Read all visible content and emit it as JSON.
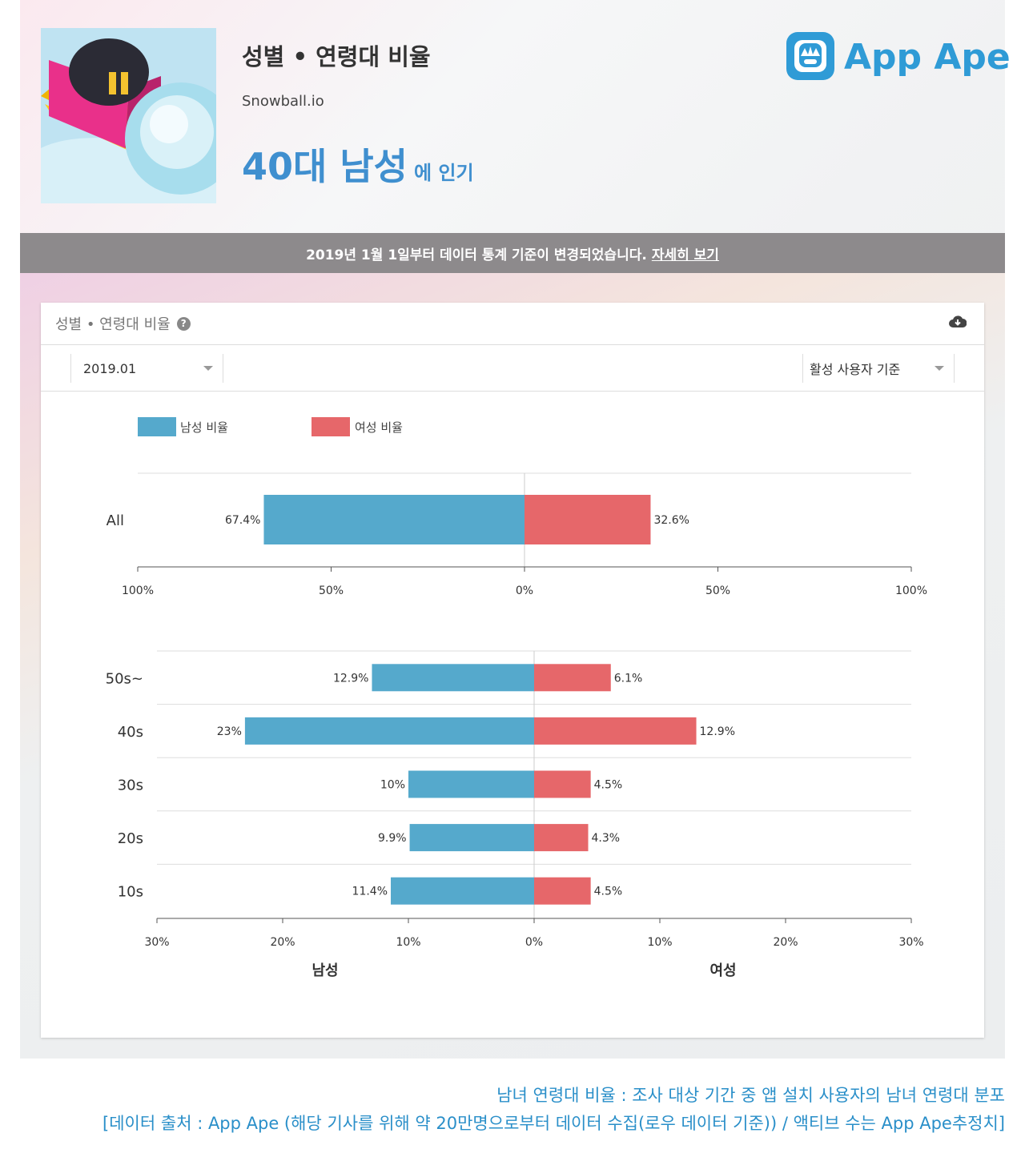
{
  "header": {
    "title": "성별 • 연령대 비율",
    "app_name": "Snowball.io",
    "popular_main": "40대 남성",
    "popular_suffix": "에 인기",
    "logo_text": "App Ape"
  },
  "notice": {
    "text": "2019년 1월 1일부터 데이터 통계 기준이 변경되었습니다.",
    "link": "자세히 보기"
  },
  "card": {
    "title": "성별 • 연령대 비율",
    "month": "2019.01",
    "basis": "활성 사용자 기준"
  },
  "colors": {
    "male": "#55a9cc",
    "female": "#e6676a",
    "accent": "#3f8fcf"
  },
  "chart_data": [
    {
      "type": "bar",
      "orientation": "horizontal-diverging",
      "categories": [
        "All"
      ],
      "series": [
        {
          "name": "남성 비율",
          "values": [
            67.4
          ],
          "labels": [
            "67.4%"
          ]
        },
        {
          "name": "여성 비율",
          "values": [
            32.6
          ],
          "labels": [
            "32.6%"
          ]
        }
      ],
      "xlim": [
        -100,
        100
      ],
      "xticks": [
        "100%",
        "50%",
        "0%",
        "50%",
        "100%"
      ],
      "legend": "top-left"
    },
    {
      "type": "bar",
      "orientation": "horizontal-diverging",
      "categories": [
        "50s~",
        "40s",
        "30s",
        "20s",
        "10s"
      ],
      "series": [
        {
          "name": "남성",
          "values": [
            12.9,
            23,
            10,
            9.9,
            11.4
          ],
          "labels": [
            "12.9%",
            "23%",
            "10%",
            "9.9%",
            "11.4%"
          ]
        },
        {
          "name": "여성",
          "values": [
            6.1,
            12.9,
            4.5,
            4.3,
            4.5
          ],
          "labels": [
            "6.1%",
            "12.9%",
            "4.5%",
            "4.3%",
            "4.5%"
          ]
        }
      ],
      "xlim": [
        -30,
        30
      ],
      "xticks": [
        "30%",
        "20%",
        "10%",
        "0%",
        "10%",
        "20%",
        "30%"
      ],
      "xlabel_left": "남성",
      "xlabel_right": "여성"
    }
  ],
  "captions": {
    "line1": "남녀 연령대 비율 : 조사 대상 기간 중 앱 설치 사용자의 남녀 연령대 분포",
    "line2": "[데이터 출처 : App Ape (해당 기사를 위해 약 20만명으로부터 데이터 수집(로우 데이터 기준)) / 액티브 수는 App Ape추정치]"
  }
}
